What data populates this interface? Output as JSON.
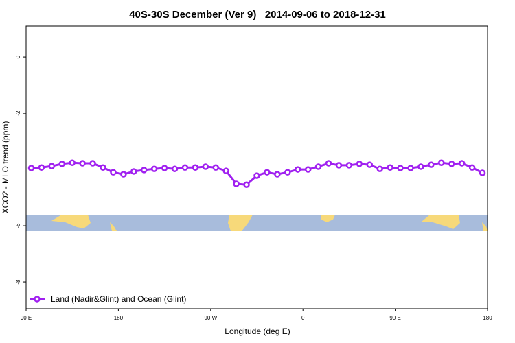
{
  "chart_data": {
    "type": "line",
    "title": "40S-30S December (Ver 9)   2014-09-06 to 2018-12-31",
    "x_label": "Longitude (deg E)",
    "y_label": "XCO2 - MLO trend (ppm)",
    "x": [
      95,
      105,
      115,
      125,
      135,
      145,
      155,
      165,
      175,
      185,
      195,
      205,
      215,
      225,
      235,
      245,
      255,
      265,
      275,
      285,
      295,
      305,
      315,
      325,
      335,
      345,
      355,
      365,
      375,
      385,
      395,
      405,
      415,
      425,
      435,
      445,
      455,
      465,
      475,
      485,
      495,
      505,
      515,
      525,
      535
    ],
    "series": [
      {
        "name": "Land (Nadir&Glint) and Ocean (Glint)",
        "color": "#a020f0",
        "values": [
          -3.95,
          -3.93,
          -3.88,
          -3.8,
          -3.76,
          -3.78,
          -3.78,
          -3.93,
          -4.1,
          -4.17,
          -4.07,
          -4.02,
          -3.98,
          -3.95,
          -3.98,
          -3.93,
          -3.93,
          -3.9,
          -3.93,
          -4.05,
          -4.51,
          -4.54,
          -4.22,
          -4.1,
          -4.17,
          -4.1,
          -4.0,
          -4.0,
          -3.9,
          -3.78,
          -3.85,
          -3.85,
          -3.8,
          -3.83,
          -3.98,
          -3.93,
          -3.95,
          -3.95,
          -3.9,
          -3.83,
          -3.76,
          -3.8,
          -3.78,
          -3.93,
          -4.12
        ]
      }
    ],
    "xlim": [
      90,
      540
    ],
    "xticks": [
      {
        "value": 90,
        "label": "90 E"
      },
      180,
      {
        "value": 270,
        "label": "90 W"
      },
      {
        "value": 360,
        "label": "0"
      },
      {
        "value": 450,
        "label": "90 E"
      },
      {
        "value": 540,
        "label": "180"
      }
    ],
    "ylim": [
      1.1,
      -8.95
    ],
    "yticks": [
      0,
      -2,
      -6,
      -8
    ],
    "legend": "bottom-left"
  }
}
